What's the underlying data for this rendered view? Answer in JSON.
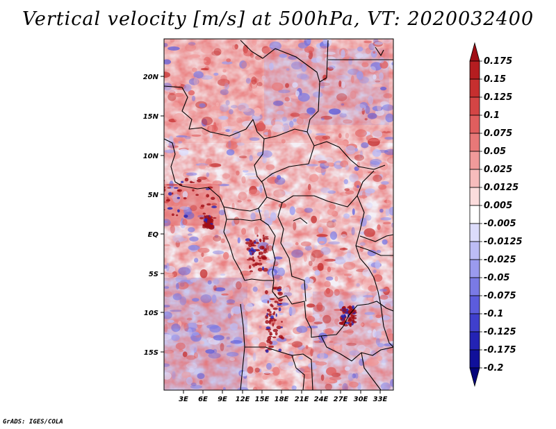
{
  "title": "Vertical velocity [m/s] at 500hPa, VT: 2020032400",
  "credit": "GrADS: IGES/COLA",
  "map": {
    "lon_range": [
      0,
      35
    ],
    "lat_range": [
      -20,
      25
    ],
    "lat_labels": [
      "20N",
      "15N",
      "10N",
      "5N",
      "EQ",
      "5S",
      "10S",
      "15S"
    ],
    "lat_values": [
      20,
      15,
      10,
      5,
      0,
      -5,
      -10,
      -15
    ],
    "lon_labels": [
      "3E",
      "6E",
      "9E",
      "12E",
      "15E",
      "18E",
      "21E",
      "24E",
      "27E",
      "30E",
      "33E"
    ],
    "lon_values": [
      3,
      6,
      9,
      12,
      15,
      18,
      21,
      24,
      27,
      30,
      33
    ]
  },
  "colorbar": {
    "labels": [
      "0.175",
      "0.15",
      "0.125",
      "0.1",
      "0.075",
      "0.05",
      "0.025",
      "0.0125",
      "0.005",
      "-0.005",
      "-0.0125",
      "-0.025",
      "-0.05",
      "-0.075",
      "-0.1",
      "-0.125",
      "-0.175",
      "-0.2"
    ],
    "colors": [
      "#a00d14",
      "#b51d20",
      "#c62f2f",
      "#d44545",
      "#e05e5e",
      "#e87878",
      "#f19a9a",
      "#f7bcbc",
      "#fbdcdc",
      "#ffffff",
      "#dcdcfb",
      "#bcbcf5",
      "#9a9aee",
      "#7a7ae5",
      "#5c5cdc",
      "#3f3fcc",
      "#2323b4",
      "#10109a",
      "#04047a"
    ]
  }
}
